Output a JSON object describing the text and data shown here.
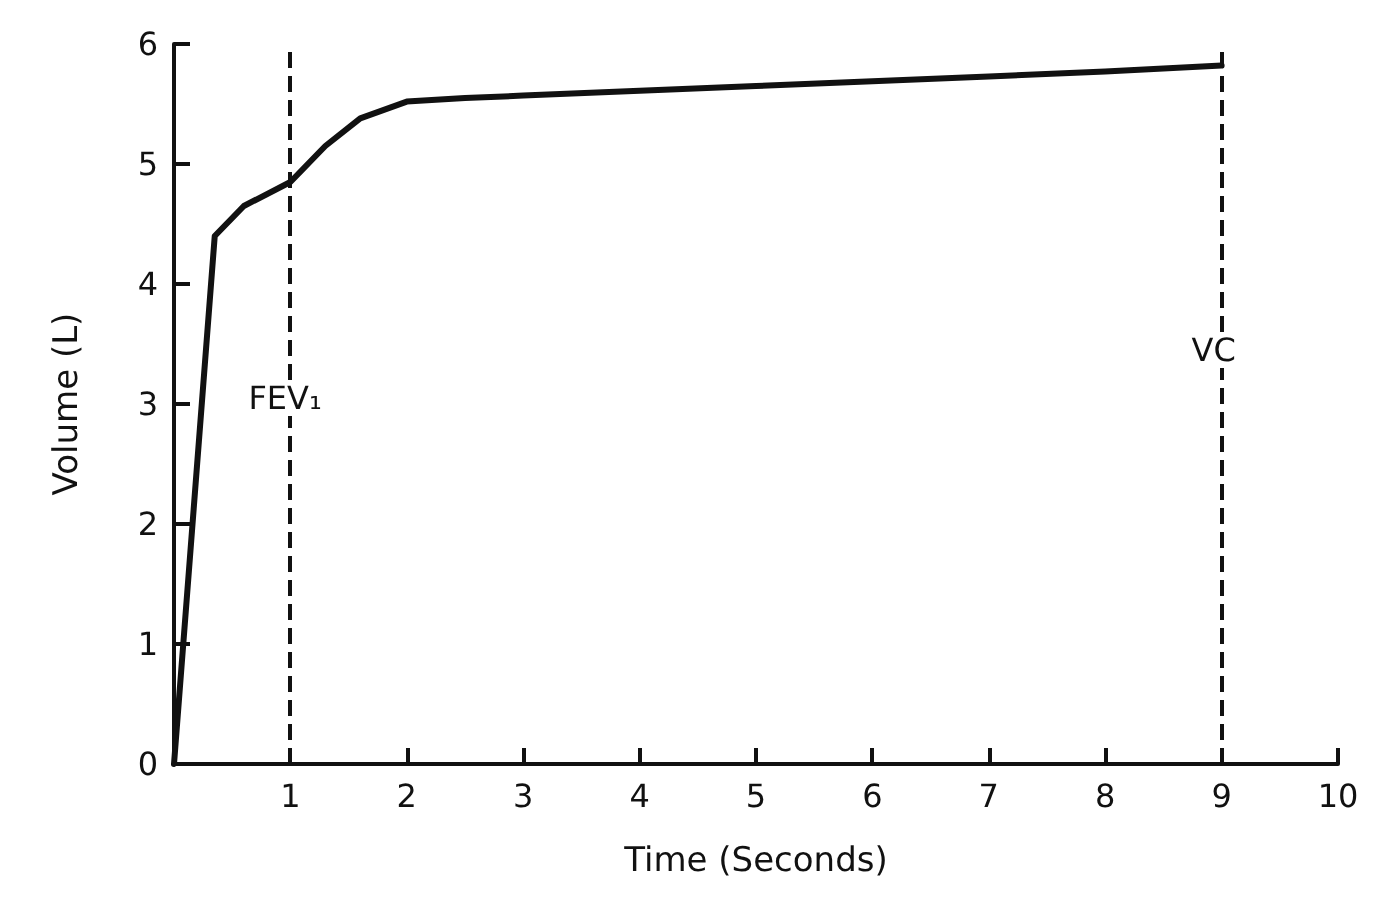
{
  "chart_data": {
    "type": "line",
    "xlabel": "Time (Seconds)",
    "ylabel": "Volume (L)",
    "x": [
      0,
      0.35,
      0.6,
      1,
      1.3,
      1.6,
      2,
      2.5,
      3,
      4,
      5,
      6,
      7,
      8,
      9
    ],
    "series": [
      {
        "color": "#111111",
        "values": [
          0,
          4.4,
          4.65,
          4.85,
          5.15,
          5.38,
          5.52,
          5.55,
          5.57,
          5.61,
          5.65,
          5.69,
          5.73,
          5.77,
          5.82
        ]
      }
    ],
    "xlim": [
      0,
      10
    ],
    "xticks": [
      1,
      2,
      3,
      4,
      5,
      6,
      7,
      8,
      9,
      10
    ],
    "ylim": [
      0,
      6
    ],
    "yticks": [
      0,
      1,
      2,
      3,
      4,
      5,
      6
    ],
    "ref_lines": [
      {
        "axis": "x",
        "value": 1,
        "label": "FEV₁",
        "line_style": "dashed"
      },
      {
        "axis": "x",
        "value": 9,
        "label": "VC",
        "line_style": "dashed"
      }
    ],
    "grid": false,
    "marker": "none",
    "line_style": "solid"
  }
}
